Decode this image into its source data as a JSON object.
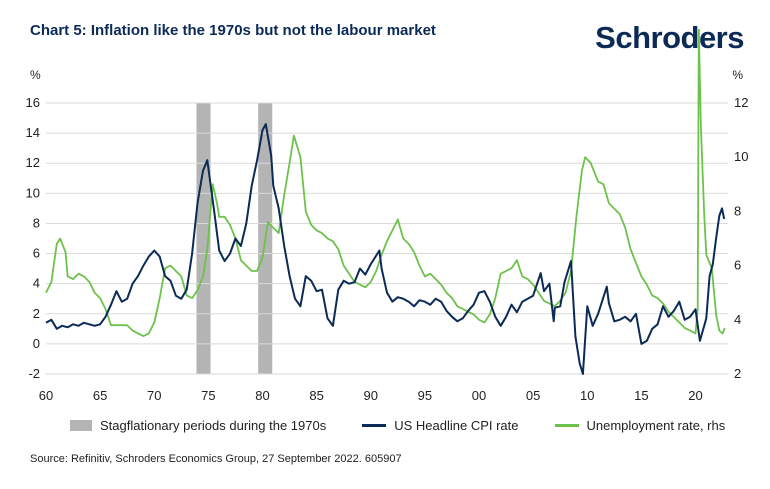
{
  "title": "Chart 5: Inflation like the 1970s but not the labour market",
  "logo_text": "Schroders",
  "source": "Source: Refinitiv, Schroders Economics Group, 27 September 2022. 605907",
  "colors": {
    "cpi": "#0b2a56",
    "unemployment": "#6cc24a",
    "shade": "#b4b4b4",
    "logo": "#0b2a56"
  },
  "chart_data": {
    "type": "line",
    "title": "Chart 5: Inflation like the 1970s but not the labour market",
    "left_axis": {
      "label": "%",
      "range": [
        -2,
        16
      ],
      "ticks": [
        -2,
        0,
        2,
        4,
        6,
        8,
        10,
        12,
        14,
        16
      ]
    },
    "right_axis": {
      "label": "%",
      "range": [
        2,
        12
      ],
      "ticks": [
        2,
        4,
        6,
        8,
        10,
        12
      ]
    },
    "x_axis": {
      "range": [
        1960,
        2023
      ],
      "ticks": [
        1960,
        1965,
        1970,
        1975,
        1980,
        1985,
        1990,
        1995,
        2000,
        2005,
        2010,
        2015,
        2020
      ],
      "tick_labels": [
        "60",
        "65",
        "70",
        "75",
        "80",
        "85",
        "90",
        "95",
        "00",
        "05",
        "10",
        "15",
        "20"
      ]
    },
    "grid": "horizontal",
    "legend_position": "bottom",
    "shaded_periods": {
      "name": "Stagflationary periods during the 1970s",
      "ranges": [
        [
          1973.9,
          1975.2
        ],
        [
          1979.6,
          1980.9
        ]
      ]
    },
    "series": [
      {
        "name": "US Headline CPI rate",
        "axis": "left",
        "points": [
          [
            1960,
            1.4
          ],
          [
            1960.5,
            1.6
          ],
          [
            1961,
            1.0
          ],
          [
            1961.5,
            1.2
          ],
          [
            1962,
            1.1
          ],
          [
            1962.5,
            1.3
          ],
          [
            1963,
            1.2
          ],
          [
            1963.5,
            1.4
          ],
          [
            1964,
            1.3
          ],
          [
            1964.5,
            1.2
          ],
          [
            1965,
            1.3
          ],
          [
            1965.5,
            1.8
          ],
          [
            1966,
            2.6
          ],
          [
            1966.5,
            3.5
          ],
          [
            1967,
            2.8
          ],
          [
            1967.5,
            3.0
          ],
          [
            1968,
            4.0
          ],
          [
            1968.5,
            4.5
          ],
          [
            1969,
            5.2
          ],
          [
            1969.5,
            5.8
          ],
          [
            1970,
            6.2
          ],
          [
            1970.5,
            5.8
          ],
          [
            1971,
            4.5
          ],
          [
            1971.5,
            4.2
          ],
          [
            1972,
            3.2
          ],
          [
            1972.5,
            3.0
          ],
          [
            1973,
            3.6
          ],
          [
            1973.5,
            6.0
          ],
          [
            1974,
            9.4
          ],
          [
            1974.5,
            11.5
          ],
          [
            1974.9,
            12.2
          ],
          [
            1975.5,
            9.0
          ],
          [
            1976,
            6.2
          ],
          [
            1976.5,
            5.5
          ],
          [
            1977,
            6.0
          ],
          [
            1977.5,
            7.0
          ],
          [
            1978,
            6.5
          ],
          [
            1978.5,
            8.0
          ],
          [
            1979,
            10.5
          ],
          [
            1979.5,
            12.2
          ],
          [
            1980,
            14.2
          ],
          [
            1980.3,
            14.6
          ],
          [
            1980.8,
            12.5
          ],
          [
            1981,
            10.5
          ],
          [
            1981.5,
            9.0
          ],
          [
            1982,
            6.5
          ],
          [
            1982.5,
            4.5
          ],
          [
            1983,
            3.0
          ],
          [
            1983.5,
            2.5
          ],
          [
            1984,
            4.5
          ],
          [
            1984.5,
            4.2
          ],
          [
            1985,
            3.5
          ],
          [
            1985.5,
            3.6
          ],
          [
            1986,
            1.7
          ],
          [
            1986.5,
            1.2
          ],
          [
            1987,
            3.6
          ],
          [
            1987.5,
            4.2
          ],
          [
            1988,
            4.0
          ],
          [
            1988.5,
            4.1
          ],
          [
            1989,
            5.0
          ],
          [
            1989.5,
            4.6
          ],
          [
            1990,
            5.3
          ],
          [
            1990.8,
            6.2
          ],
          [
            1991,
            5.0
          ],
          [
            1991.5,
            3.4
          ],
          [
            1992,
            2.8
          ],
          [
            1992.5,
            3.1
          ],
          [
            1993,
            3.0
          ],
          [
            1993.5,
            2.8
          ],
          [
            1994,
            2.5
          ],
          [
            1994.5,
            2.9
          ],
          [
            1995,
            2.8
          ],
          [
            1995.5,
            2.6
          ],
          [
            1996,
            3.0
          ],
          [
            1996.5,
            2.8
          ],
          [
            1997,
            2.2
          ],
          [
            1997.5,
            1.8
          ],
          [
            1998,
            1.5
          ],
          [
            1998.5,
            1.7
          ],
          [
            1999,
            2.2
          ],
          [
            1999.5,
            2.6
          ],
          [
            2000,
            3.4
          ],
          [
            2000.5,
            3.5
          ],
          [
            2001,
            2.8
          ],
          [
            2001.5,
            1.8
          ],
          [
            2002,
            1.2
          ],
          [
            2002.5,
            1.8
          ],
          [
            2003,
            2.6
          ],
          [
            2003.5,
            2.1
          ],
          [
            2004,
            2.8
          ],
          [
            2004.5,
            3.0
          ],
          [
            2005,
            3.2
          ],
          [
            2005.7,
            4.7
          ],
          [
            2006,
            3.5
          ],
          [
            2006.5,
            4.0
          ],
          [
            2006.9,
            1.5
          ],
          [
            2007,
            2.4
          ],
          [
            2007.5,
            2.5
          ],
          [
            2007.9,
            4.1
          ],
          [
            2008.5,
            5.5
          ],
          [
            2008.9,
            0.5
          ],
          [
            2009.3,
            -1.3
          ],
          [
            2009.6,
            -2.0
          ],
          [
            2010,
            2.5
          ],
          [
            2010.5,
            1.2
          ],
          [
            2011,
            2.0
          ],
          [
            2011.8,
            3.8
          ],
          [
            2012,
            2.7
          ],
          [
            2012.5,
            1.5
          ],
          [
            2013,
            1.6
          ],
          [
            2013.5,
            1.8
          ],
          [
            2014,
            1.5
          ],
          [
            2014.5,
            2.0
          ],
          [
            2015,
            0.0
          ],
          [
            2015.5,
            0.2
          ],
          [
            2016,
            1.0
          ],
          [
            2016.5,
            1.3
          ],
          [
            2017,
            2.5
          ],
          [
            2017.5,
            1.8
          ],
          [
            2018,
            2.2
          ],
          [
            2018.5,
            2.8
          ],
          [
            2019,
            1.6
          ],
          [
            2019.5,
            1.8
          ],
          [
            2020,
            2.3
          ],
          [
            2020.4,
            0.2
          ],
          [
            2020.8,
            1.2
          ],
          [
            2021,
            1.7
          ],
          [
            2021.3,
            4.5
          ],
          [
            2021.6,
            5.3
          ],
          [
            2021.9,
            7.0
          ],
          [
            2022.2,
            8.5
          ],
          [
            2022.45,
            9.0
          ],
          [
            2022.65,
            8.3
          ]
        ]
      },
      {
        "name": "Unemployment rate, rhs",
        "axis": "right",
        "points": [
          [
            1960,
            5.0
          ],
          [
            1960.5,
            5.4
          ],
          [
            1961,
            6.8
          ],
          [
            1961.3,
            7.0
          ],
          [
            1961.8,
            6.5
          ],
          [
            1962,
            5.6
          ],
          [
            1962.5,
            5.5
          ],
          [
            1963,
            5.7
          ],
          [
            1963.5,
            5.6
          ],
          [
            1964,
            5.4
          ],
          [
            1964.5,
            5.0
          ],
          [
            1965,
            4.8
          ],
          [
            1965.5,
            4.4
          ],
          [
            1966,
            3.8
          ],
          [
            1966.5,
            3.8
          ],
          [
            1967,
            3.8
          ],
          [
            1967.5,
            3.8
          ],
          [
            1968,
            3.6
          ],
          [
            1968.5,
            3.5
          ],
          [
            1969,
            3.4
          ],
          [
            1969.5,
            3.5
          ],
          [
            1970,
            3.9
          ],
          [
            1970.5,
            4.8
          ],
          [
            1971,
            5.9
          ],
          [
            1971.5,
            6.0
          ],
          [
            1972,
            5.8
          ],
          [
            1972.5,
            5.6
          ],
          [
            1973,
            4.9
          ],
          [
            1973.5,
            4.8
          ],
          [
            1974,
            5.1
          ],
          [
            1974.5,
            5.6
          ],
          [
            1974.9,
            6.6
          ],
          [
            1975.4,
            9.0
          ],
          [
            1975.8,
            8.3
          ],
          [
            1976,
            7.8
          ],
          [
            1976.5,
            7.8
          ],
          [
            1977,
            7.5
          ],
          [
            1977.5,
            7.0
          ],
          [
            1978,
            6.2
          ],
          [
            1978.5,
            6.0
          ],
          [
            1979,
            5.8
          ],
          [
            1979.5,
            5.8
          ],
          [
            1980,
            6.3
          ],
          [
            1980.5,
            7.6
          ],
          [
            1981,
            7.4
          ],
          [
            1981.5,
            7.2
          ],
          [
            1982,
            8.6
          ],
          [
            1982.5,
            9.8
          ],
          [
            1982.9,
            10.8
          ],
          [
            1983.5,
            10.0
          ],
          [
            1984,
            8.0
          ],
          [
            1984.5,
            7.5
          ],
          [
            1985,
            7.3
          ],
          [
            1985.5,
            7.2
          ],
          [
            1986,
            7.0
          ],
          [
            1986.5,
            6.9
          ],
          [
            1987,
            6.6
          ],
          [
            1987.5,
            6.0
          ],
          [
            1988,
            5.7
          ],
          [
            1988.5,
            5.4
          ],
          [
            1989,
            5.3
          ],
          [
            1989.5,
            5.2
          ],
          [
            1990,
            5.4
          ],
          [
            1990.5,
            5.8
          ],
          [
            1991,
            6.4
          ],
          [
            1991.5,
            6.9
          ],
          [
            1992,
            7.3
          ],
          [
            1992.5,
            7.7
          ],
          [
            1993,
            7.0
          ],
          [
            1993.5,
            6.8
          ],
          [
            1994,
            6.5
          ],
          [
            1994.5,
            6.0
          ],
          [
            1995,
            5.6
          ],
          [
            1995.5,
            5.7
          ],
          [
            1996,
            5.5
          ],
          [
            1996.5,
            5.3
          ],
          [
            1997,
            5.0
          ],
          [
            1997.5,
            4.8
          ],
          [
            1998,
            4.5
          ],
          [
            1998.5,
            4.4
          ],
          [
            1999,
            4.3
          ],
          [
            1999.5,
            4.2
          ],
          [
            2000,
            4.0
          ],
          [
            2000.5,
            3.9
          ],
          [
            2001,
            4.2
          ],
          [
            2001.5,
            4.8
          ],
          [
            2002,
            5.7
          ],
          [
            2002.5,
            5.8
          ],
          [
            2003,
            5.9
          ],
          [
            2003.5,
            6.2
          ],
          [
            2004,
            5.6
          ],
          [
            2004.5,
            5.5
          ],
          [
            2005,
            5.3
          ],
          [
            2005.5,
            5.0
          ],
          [
            2006,
            4.7
          ],
          [
            2006.5,
            4.6
          ],
          [
            2007,
            4.5
          ],
          [
            2007.5,
            4.7
          ],
          [
            2008,
            5.0
          ],
          [
            2008.5,
            5.8
          ],
          [
            2009,
            7.8
          ],
          [
            2009.5,
            9.5
          ],
          [
            2009.8,
            10.0
          ],
          [
            2010.3,
            9.8
          ],
          [
            2011,
            9.1
          ],
          [
            2011.5,
            9.0
          ],
          [
            2012,
            8.3
          ],
          [
            2012.5,
            8.1
          ],
          [
            2013,
            7.9
          ],
          [
            2013.5,
            7.4
          ],
          [
            2014,
            6.6
          ],
          [
            2014.5,
            6.1
          ],
          [
            2015,
            5.6
          ],
          [
            2015.5,
            5.3
          ],
          [
            2016,
            4.9
          ],
          [
            2016.5,
            4.8
          ],
          [
            2017,
            4.6
          ],
          [
            2017.5,
            4.3
          ],
          [
            2018,
            4.1
          ],
          [
            2018.5,
            3.9
          ],
          [
            2019,
            3.7
          ],
          [
            2019.5,
            3.6
          ],
          [
            2020,
            3.5
          ],
          [
            2020.2,
            4.4
          ],
          [
            2020.3,
            14.7
          ],
          [
            2020.5,
            11.1
          ],
          [
            2020.8,
            7.9
          ],
          [
            2021,
            6.4
          ],
          [
            2021.5,
            5.9
          ],
          [
            2021.9,
            4.2
          ],
          [
            2022.2,
            3.6
          ],
          [
            2022.5,
            3.5
          ],
          [
            2022.7,
            3.7
          ]
        ]
      }
    ]
  },
  "legend": {
    "shade_label": "Stagflationary periods during the 1970s",
    "cpi_label": "US Headline CPI rate",
    "unemployment_label": "Unemployment rate, rhs"
  }
}
